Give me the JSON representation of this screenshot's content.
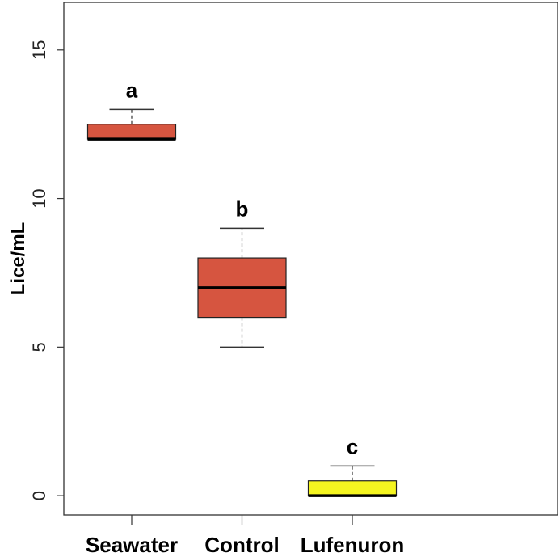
{
  "chart_data": {
    "type": "boxplot",
    "title": "",
    "xlabel": "",
    "ylabel": "Lice/mL",
    "ylim": [
      -0.65,
      16.6
    ],
    "yticks": [
      0,
      5,
      10,
      15
    ],
    "ytick_labels": [
      "0",
      "5",
      "10",
      "15"
    ],
    "grid": false,
    "categories": [
      "Seawater",
      "Control",
      "Lufenuron"
    ],
    "boxes": [
      {
        "name": "Seawater",
        "min": 12,
        "q1": 12,
        "median": 12,
        "q3": 12.5,
        "max": 13,
        "color": "#D65540",
        "letter": "a"
      },
      {
        "name": "Control",
        "min": 5,
        "q1": 6,
        "median": 7,
        "q3": 8,
        "max": 9,
        "color": "#D65540",
        "letter": "b"
      },
      {
        "name": "Lufenuron",
        "min": 0,
        "q1": 0,
        "median": 0,
        "q3": 0.5,
        "max": 1,
        "color": "#F5F520",
        "letter": "c"
      }
    ]
  }
}
